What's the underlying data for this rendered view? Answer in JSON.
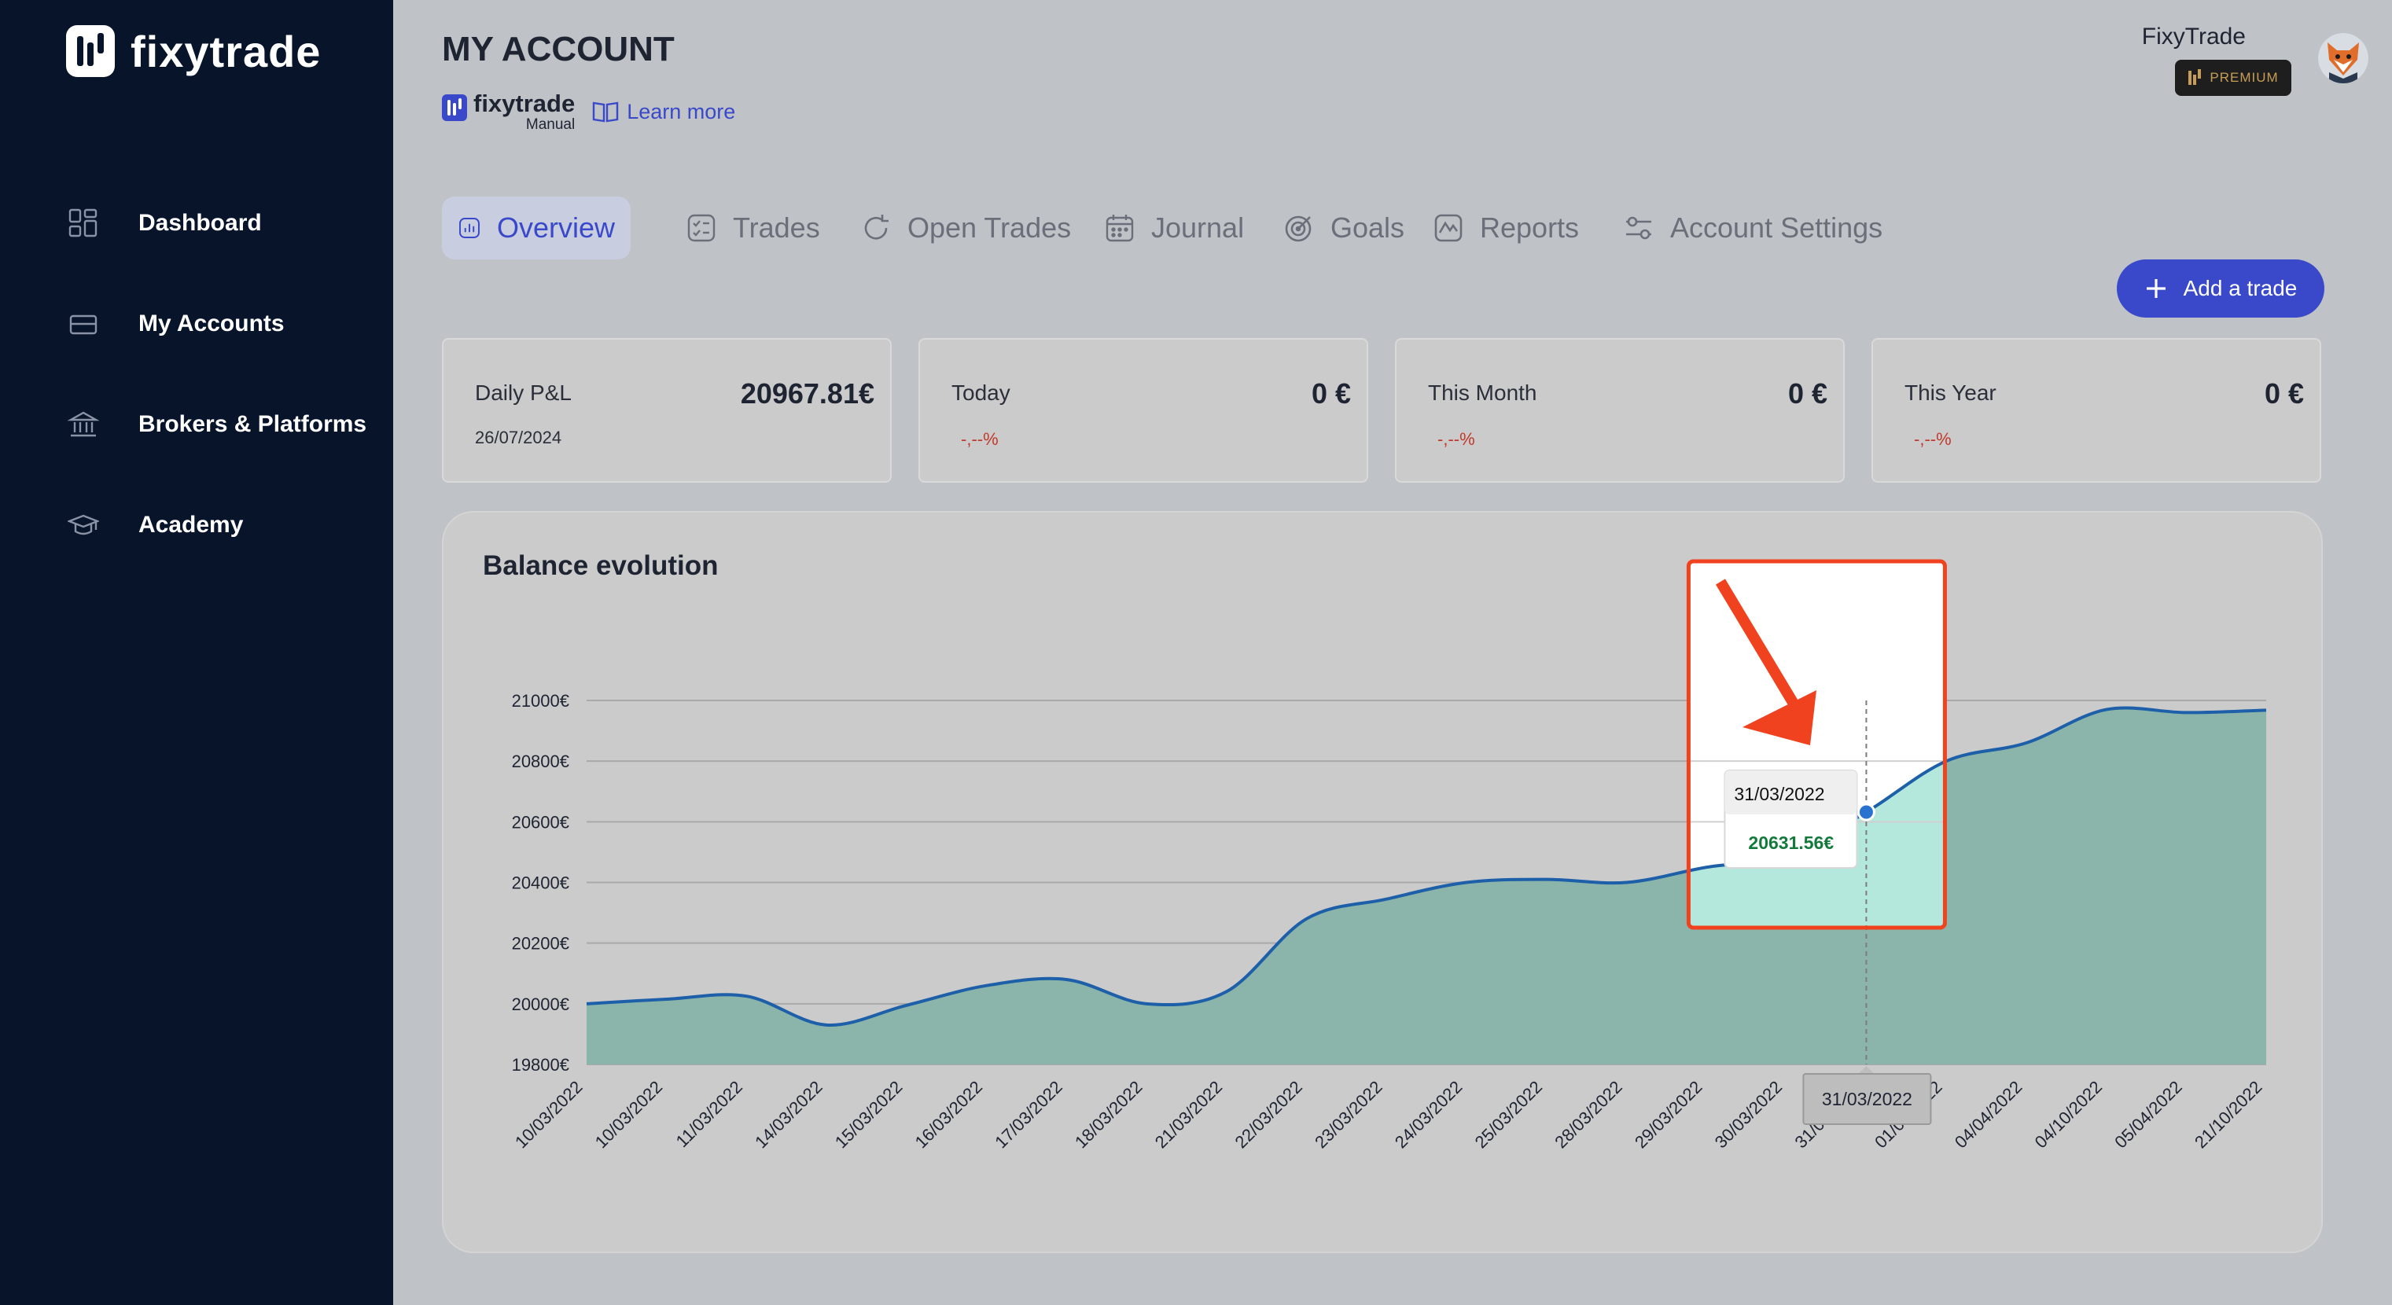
{
  "app": {
    "name": "fixytrade"
  },
  "sidebar": {
    "items": [
      {
        "label": "Dashboard",
        "icon": "grid-icon"
      },
      {
        "label": "My Accounts",
        "icon": "card-icon"
      },
      {
        "label": "Brokers & Platforms",
        "icon": "bank-icon"
      },
      {
        "label": "Academy",
        "icon": "graduation-cap-icon"
      }
    ]
  },
  "header": {
    "title": "MY ACCOUNT",
    "brand_name": "fixytrade",
    "brand_sub": "Manual",
    "learn_more": "Learn more",
    "user_name": "FixyTrade",
    "badge": "PREMIUM"
  },
  "tabs": [
    {
      "label": "Overview",
      "icon": "chart-icon",
      "active": true
    },
    {
      "label": "Trades",
      "icon": "checklist-icon"
    },
    {
      "label": "Open Trades",
      "icon": "refresh-icon"
    },
    {
      "label": "Journal",
      "icon": "calendar-icon"
    },
    {
      "label": "Goals",
      "icon": "target-icon"
    },
    {
      "label": "Reports",
      "icon": "report-icon"
    },
    {
      "label": "Account Settings",
      "icon": "sliders-icon"
    }
  ],
  "add_trade": "Add a trade",
  "cards": [
    {
      "label": "Daily P&L",
      "value": "20967.81€",
      "sub": "26/07/2024"
    },
    {
      "label": "Today",
      "value": "0 €",
      "pct": "-,--%"
    },
    {
      "label": "This Month",
      "value": "0 €",
      "pct": "-,--%"
    },
    {
      "label": "This Year",
      "value": "0 €",
      "pct": "-,--%"
    }
  ],
  "colors": {
    "sidebar_bg": "#07142a",
    "accent": "#3a49c9",
    "line": "#1d5fa8",
    "area": "#8bb5aa",
    "highlight_border": "#f0421f",
    "highlight_fill": "#b4e8dd",
    "tooltip_value": "#137a3c"
  },
  "chart_data": {
    "type": "area",
    "title": "Balance evolution",
    "xlabel": "",
    "ylabel": "",
    "ylim": [
      19800,
      21000
    ],
    "y_ticks": [
      "19800€",
      "20000€",
      "20200€",
      "20400€",
      "20600€",
      "20800€",
      "21000€"
    ],
    "categories": [
      "10/03/2022",
      "10/03/2022",
      "11/03/2022",
      "14/03/2022",
      "15/03/2022",
      "16/03/2022",
      "17/03/2022",
      "18/03/2022",
      "21/03/2022",
      "22/03/2022",
      "23/03/2022",
      "24/03/2022",
      "25/03/2022",
      "28/03/2022",
      "29/03/2022",
      "30/03/2022",
      "31/03/2022",
      "01/04/2022",
      "04/04/2022",
      "04/10/2022",
      "05/04/2022",
      "21/10/2022"
    ],
    "values": [
      20000,
      20015,
      20025,
      19930,
      19995,
      20060,
      20080,
      20000,
      20040,
      20280,
      20345,
      20400,
      20410,
      20400,
      20450,
      20490,
      20632,
      20800,
      20860,
      20970,
      20960,
      20968
    ],
    "grid": true,
    "legend": "none",
    "tooltip": {
      "date": "31/03/2022",
      "value": "20631.56€",
      "index": 16
    }
  }
}
